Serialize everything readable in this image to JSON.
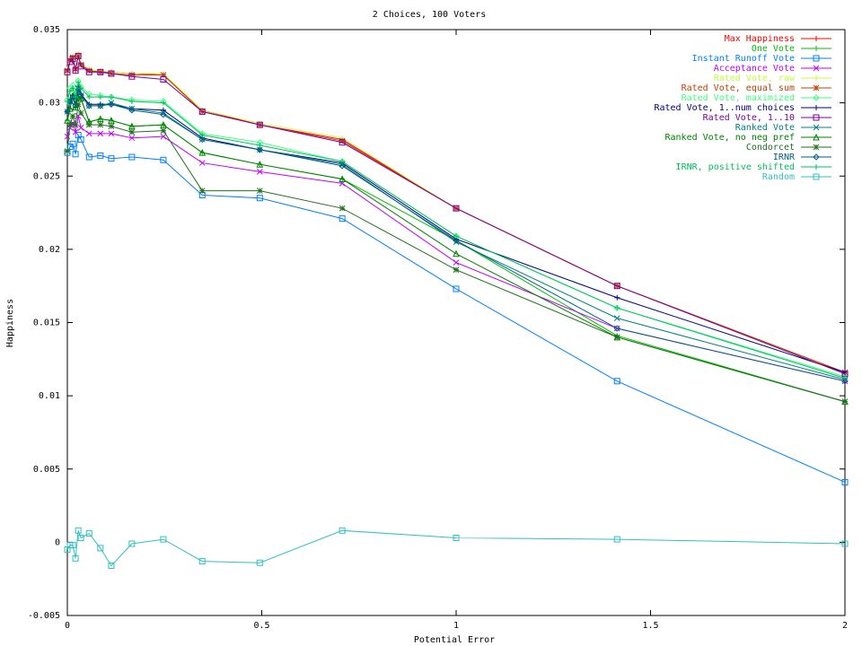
{
  "chart_data": {
    "type": "line",
    "title": "2 Choices, 100 Voters",
    "xlabel": "Potential Error",
    "ylabel": "Happiness",
    "xlim": [
      0,
      2
    ],
    "ylim": [
      -0.005,
      0.035
    ],
    "x_ticks": [
      0,
      0.5,
      1,
      1.5,
      2
    ],
    "x_tick_labels": [
      "0",
      "0.5",
      "1",
      "1.5",
      "2"
    ],
    "y_ticks": [
      -0.005,
      0,
      0.005,
      0.01,
      0.015,
      0.02,
      0.025,
      0.03,
      0.035
    ],
    "y_tick_labels": [
      "-0.005",
      "0",
      "0.005",
      "0.01",
      "0.015",
      "0.02",
      "0.025",
      "0.03",
      "0.035"
    ],
    "grid": false,
    "legend_position": "top-right",
    "x": [
      0,
      0.007,
      0.014,
      0.021,
      0.028,
      0.035,
      0.056,
      0.085,
      0.113,
      0.166,
      0.247,
      0.347,
      0.495,
      0.707,
      1.0,
      1.414,
      2.0
    ],
    "series": [
      {
        "name": "Max Happiness",
        "color": "#ff0000",
        "marker": "plus",
        "values": [
          0.0321,
          0.0329,
          0.0331,
          0.0322,
          0.0333,
          0.0326,
          0.0322,
          0.0321,
          0.0321,
          0.032,
          0.0319,
          0.0295,
          0.0285,
          0.0275,
          0.0228,
          0.0175,
          0.0116
        ]
      },
      {
        "name": "One Vote",
        "color": "#00c000",
        "marker": "plus",
        "values": [
          0.0288,
          0.0296,
          0.0305,
          0.0297,
          0.0304,
          0.0303,
          0.0287,
          0.0289,
          0.0288,
          0.0284,
          0.0285,
          0.0266,
          0.0258,
          0.0248,
          0.0206,
          0.0141,
          0.0096
        ]
      },
      {
        "name": "Instant Runoff Vote",
        "color": "#0080ff",
        "marker": "square",
        "values": [
          0.0266,
          0.027,
          0.0272,
          0.0265,
          0.0278,
          0.0275,
          0.0263,
          0.0264,
          0.0262,
          0.0263,
          0.0261,
          0.0237,
          0.0235,
          0.0221,
          0.0173,
          0.011,
          0.0041
        ]
      },
      {
        "name": "Acceptance Vote",
        "color": "#c000ff",
        "marker": "x",
        "values": [
          0.0277,
          0.0283,
          0.0286,
          0.028,
          0.0291,
          0.0283,
          0.0279,
          0.0279,
          0.0279,
          0.0276,
          0.0277,
          0.0259,
          0.0253,
          0.0245,
          0.0191,
          0.0146,
          0.011
        ]
      },
      {
        "name": "Rated Vote, raw",
        "color": "#c0ff40",
        "marker": "plus",
        "values": [
          0.0323,
          0.033,
          0.0332,
          0.0324,
          0.0333,
          0.0327,
          0.0323,
          0.0322,
          0.0321,
          0.032,
          0.032,
          0.0295,
          0.0286,
          0.0276,
          0.0228,
          0.0175,
          0.0116
        ]
      },
      {
        "name": "Rated Vote, equal sum",
        "color": "#c04000",
        "marker": "star",
        "values": [
          0.0322,
          0.0329,
          0.0331,
          0.0323,
          0.0332,
          0.0326,
          0.0322,
          0.0321,
          0.032,
          0.0319,
          0.0319,
          0.0294,
          0.0285,
          0.0274,
          0.0228,
          0.0175,
          0.0116
        ]
      },
      {
        "name": "Rated Vote, maximized",
        "color": "#40ff80",
        "marker": "diamond",
        "values": [
          0.0302,
          0.031,
          0.0312,
          0.0306,
          0.0315,
          0.0311,
          0.0306,
          0.0305,
          0.0304,
          0.0302,
          0.0301,
          0.0279,
          0.0273,
          0.026,
          0.0209,
          0.016,
          0.0113
        ]
      },
      {
        "name": "Rated Vote, 1..num choices",
        "color": "#000080",
        "marker": "plus",
        "values": [
          0.0294,
          0.0301,
          0.0305,
          0.0299,
          0.0311,
          0.0306,
          0.0299,
          0.0299,
          0.0299,
          0.0296,
          0.0295,
          0.0276,
          0.0268,
          0.0259,
          0.0207,
          0.0167,
          0.0116
        ]
      },
      {
        "name": "Rated Vote, 1..10",
        "color": "#8000a0",
        "marker": "square",
        "values": [
          0.0321,
          0.0328,
          0.033,
          0.0322,
          0.0332,
          0.0325,
          0.0321,
          0.0321,
          0.032,
          0.0318,
          0.0316,
          0.0294,
          0.0285,
          0.0273,
          0.0228,
          0.0175,
          0.0115
        ]
      },
      {
        "name": "Ranked Vote",
        "color": "#008080",
        "marker": "x",
        "values": [
          0.0294,
          0.0301,
          0.0304,
          0.0298,
          0.031,
          0.0305,
          0.0298,
          0.0298,
          0.03,
          0.0296,
          0.0293,
          0.0275,
          0.0268,
          0.0258,
          0.0205,
          0.0153,
          0.0111
        ]
      },
      {
        "name": "Ranked Vote, no neg pref",
        "color": "#008000",
        "marker": "triangle",
        "values": [
          0.0288,
          0.0296,
          0.0305,
          0.0297,
          0.0304,
          0.0303,
          0.0287,
          0.0289,
          0.0288,
          0.0284,
          0.0285,
          0.0266,
          0.0258,
          0.0248,
          0.0197,
          0.014,
          0.0096
        ]
      },
      {
        "name": "Condorcet",
        "color": "#207020",
        "marker": "star",
        "values": [
          0.0267,
          0.0285,
          0.0291,
          0.0285,
          0.0299,
          0.0293,
          0.0285,
          0.0285,
          0.0284,
          0.028,
          0.0281,
          0.024,
          0.024,
          0.0228,
          0.0186,
          0.014,
          0.0096
        ]
      },
      {
        "name": "IRNR",
        "color": "#006080",
        "marker": "diamond",
        "values": [
          0.0294,
          0.0301,
          0.0304,
          0.0298,
          0.0309,
          0.0305,
          0.0298,
          0.0298,
          0.0299,
          0.0295,
          0.0292,
          0.0275,
          0.0268,
          0.0257,
          0.0206,
          0.0146,
          0.011
        ]
      },
      {
        "name": "IRNR, positive shifted",
        "color": "#00c060",
        "marker": "plus",
        "values": [
          0.0301,
          0.0308,
          0.031,
          0.0304,
          0.0314,
          0.031,
          0.0304,
          0.0304,
          0.0304,
          0.0301,
          0.03,
          0.0278,
          0.0271,
          0.026,
          0.0209,
          0.016,
          0.0112
        ]
      },
      {
        "name": "Random",
        "color": "#30c0c0",
        "marker": "square",
        "values": [
          -0.0005,
          -0.0002,
          -0.0002,
          -0.0011,
          0.0008,
          0.0003,
          0.0006,
          -0.0004,
          -0.0016,
          -0.0001,
          0.0002,
          -0.0013,
          -0.0014,
          0.0008,
          0.0003,
          0.0002,
          -0.0001
        ]
      }
    ]
  }
}
